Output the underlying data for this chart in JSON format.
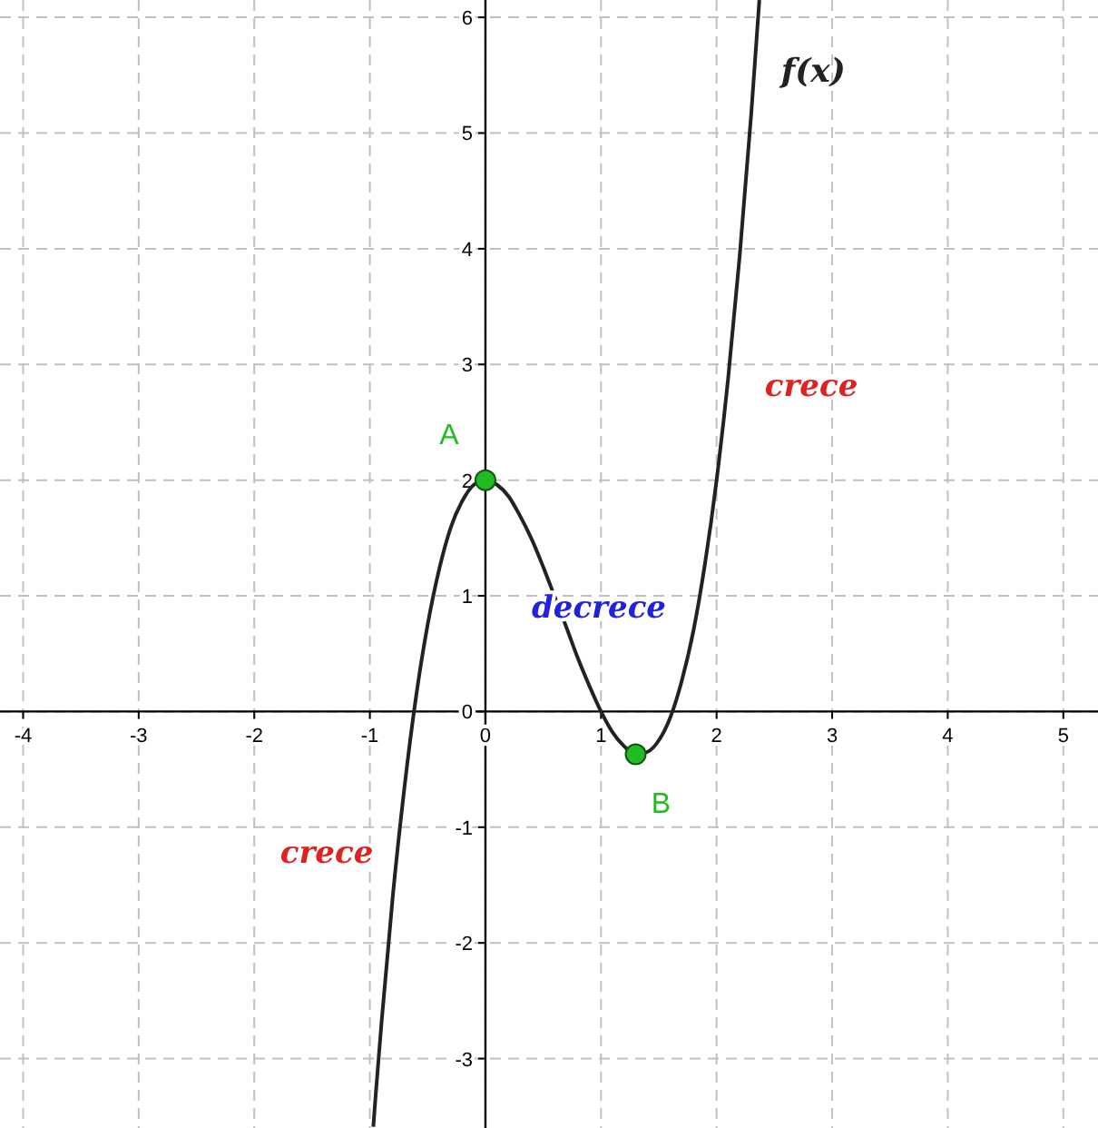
{
  "chart_data": {
    "type": "line",
    "xlim": [
      -4.2,
      5.3
    ],
    "ylim": [
      -3.6,
      6.15
    ],
    "xticks": [
      -4,
      -3,
      -2,
      -1,
      0,
      1,
      2,
      3,
      4,
      5
    ],
    "yticks": [
      -3,
      -2,
      -1,
      0,
      1,
      2,
      3,
      4,
      5,
      6
    ],
    "grid": true,
    "series": [
      {
        "name": "f(x)",
        "color": "#222222",
        "x": [
          -0.97,
          -0.95,
          -0.9,
          -0.8,
          -0.7,
          -0.6,
          -0.5,
          -0.4,
          -0.3,
          -0.2,
          -0.1,
          0,
          0.1,
          0.2,
          0.3,
          0.4,
          0.5,
          0.6,
          0.7,
          0.8,
          0.9,
          1,
          1.1,
          1.2,
          1.3,
          1.4,
          1.5,
          1.6,
          1.7,
          1.8,
          1.9,
          2,
          2.1,
          2.2,
          2.3,
          2.35,
          2.37
        ],
        "values": [
          -3.59,
          -3.32,
          -2.7,
          -1.58,
          -0.65,
          0.13,
          0.75,
          1.23,
          1.59,
          1.82,
          1.96,
          2,
          1.96,
          1.86,
          1.69,
          1.49,
          1.25,
          0.99,
          0.73,
          0.46,
          0.22,
          0,
          -0.18,
          -0.3,
          -0.37,
          -0.35,
          -0.25,
          -0.05,
          0.27,
          0.7,
          1.28,
          2,
          2.88,
          3.94,
          5.17,
          5.87,
          6.15
        ]
      },
      {
        "name": "A",
        "type": "scatter",
        "marker": "circle",
        "color": "#22bb22",
        "x": [
          0
        ],
        "values": [
          2
        ]
      },
      {
        "name": "B",
        "type": "scatter",
        "marker": "circle",
        "color": "#22bb22",
        "x": [
          1.3
        ],
        "values": [
          -0.37
        ]
      }
    ],
    "annotations": [
      "crece",
      "decrece",
      "crece"
    ]
  }
}
